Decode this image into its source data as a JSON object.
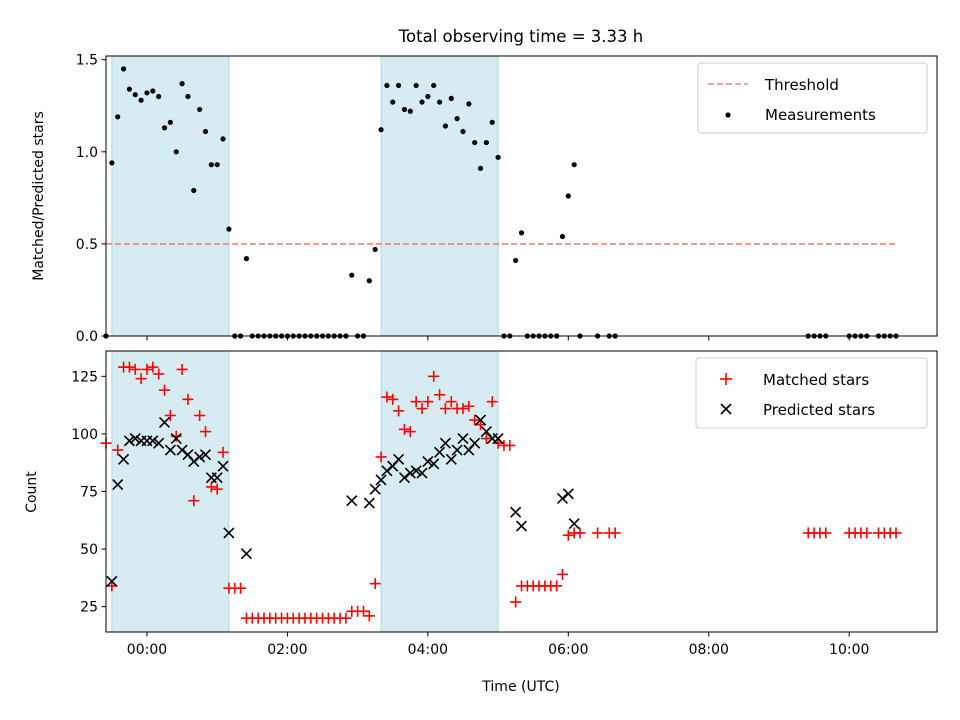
{
  "chart_data": [
    {
      "type": "scatter",
      "title": "Total observing time = 3.33 h",
      "xlabel": "",
      "ylabel": "Matched/Predicted stars",
      "x_axis": "time_utc",
      "xlim": [
        "-00:35",
        "11:15"
      ],
      "ylim": [
        0,
        1.52
      ],
      "yticks": [
        "0.0",
        "0.5",
        "1.0",
        "1.5"
      ],
      "grid": false,
      "legend_position": "top-right",
      "legend": [
        "Threshold",
        "Measurements"
      ],
      "shaded_intervals": [
        {
          "start": "-00:30",
          "end": "01:10"
        },
        {
          "start": "03:20",
          "end": "05:00"
        }
      ],
      "threshold": {
        "name": "Threshold",
        "value": 0.5,
        "x_start": "-00:35",
        "x_end": "10:40",
        "color": "#f08080",
        "style": "dashed"
      },
      "series": [
        {
          "name": "Measurements",
          "marker": "dot",
          "color": "#000000",
          "points": [
            [
              "-00:35",
              0.0
            ],
            [
              "-00:30",
              0.94
            ],
            [
              "-00:25",
              1.19
            ],
            [
              "-00:20",
              1.45
            ],
            [
              "-00:15",
              1.34
            ],
            [
              "-00:10",
              1.31
            ],
            [
              "-00:05",
              1.28
            ],
            [
              "00:00",
              1.32
            ],
            [
              "00:05",
              1.33
            ],
            [
              "00:10",
              1.3
            ],
            [
              "00:15",
              1.13
            ],
            [
              "00:20",
              1.16
            ],
            [
              "00:25",
              1.0
            ],
            [
              "00:30",
              1.37
            ],
            [
              "00:35",
              1.3
            ],
            [
              "00:40",
              0.79
            ],
            [
              "00:45",
              1.23
            ],
            [
              "00:50",
              1.11
            ],
            [
              "00:55",
              0.93
            ],
            [
              "01:00",
              0.93
            ],
            [
              "01:05",
              1.07
            ],
            [
              "01:10",
              0.58
            ],
            [
              "01:15",
              0.0
            ],
            [
              "01:20",
              0.0
            ],
            [
              "01:25",
              0.42
            ],
            [
              "01:30",
              0.0
            ],
            [
              "01:35",
              0.0
            ],
            [
              "01:40",
              0.0
            ],
            [
              "01:45",
              0.0
            ],
            [
              "01:50",
              0.0
            ],
            [
              "01:55",
              0.0
            ],
            [
              "02:00",
              0.0
            ],
            [
              "02:05",
              0.0
            ],
            [
              "02:10",
              0.0
            ],
            [
              "02:15",
              0.0
            ],
            [
              "02:20",
              0.0
            ],
            [
              "02:25",
              0.0
            ],
            [
              "02:30",
              0.0
            ],
            [
              "02:35",
              0.0
            ],
            [
              "02:40",
              0.0
            ],
            [
              "02:45",
              0.0
            ],
            [
              "02:50",
              0.0
            ],
            [
              "02:55",
              0.33
            ],
            [
              "03:00",
              0.0
            ],
            [
              "03:05",
              0.0
            ],
            [
              "03:10",
              0.3
            ],
            [
              "03:15",
              0.47
            ],
            [
              "03:20",
              1.12
            ],
            [
              "03:25",
              1.36
            ],
            [
              "03:30",
              1.27
            ],
            [
              "03:35",
              1.36
            ],
            [
              "03:40",
              1.23
            ],
            [
              "03:45",
              1.22
            ],
            [
              "03:50",
              1.36
            ],
            [
              "03:55",
              1.27
            ],
            [
              "04:00",
              1.3
            ],
            [
              "04:05",
              1.36
            ],
            [
              "04:10",
              1.27
            ],
            [
              "04:15",
              1.14
            ],
            [
              "04:20",
              1.29
            ],
            [
              "04:25",
              1.18
            ],
            [
              "04:30",
              1.11
            ],
            [
              "04:35",
              1.26
            ],
            [
              "04:40",
              1.05
            ],
            [
              "04:45",
              0.91
            ],
            [
              "04:50",
              1.05
            ],
            [
              "04:55",
              1.16
            ],
            [
              "05:00",
              0.97
            ],
            [
              "05:05",
              0.0
            ],
            [
              "05:10",
              0.0
            ],
            [
              "05:15",
              0.41
            ],
            [
              "05:20",
              0.56
            ],
            [
              "05:25",
              0.0
            ],
            [
              "05:30",
              0.0
            ],
            [
              "05:35",
              0.0
            ],
            [
              "05:40",
              0.0
            ],
            [
              "05:45",
              0.0
            ],
            [
              "05:50",
              0.0
            ],
            [
              "05:55",
              0.54
            ],
            [
              "06:00",
              0.76
            ],
            [
              "06:05",
              0.93
            ],
            [
              "06:10",
              0.0
            ],
            [
              "06:25",
              0.0
            ],
            [
              "06:35",
              0.0
            ],
            [
              "06:40",
              0.0
            ],
            [
              "09:25",
              0.0
            ],
            [
              "09:30",
              0.0
            ],
            [
              "09:35",
              0.0
            ],
            [
              "09:40",
              0.0
            ],
            [
              "10:00",
              0.0
            ],
            [
              "10:05",
              0.0
            ],
            [
              "10:10",
              0.0
            ],
            [
              "10:15",
              0.0
            ],
            [
              "10:25",
              0.0
            ],
            [
              "10:30",
              0.0
            ],
            [
              "10:35",
              0.0
            ],
            [
              "10:40",
              0.0
            ]
          ]
        }
      ]
    },
    {
      "type": "scatter",
      "title": "",
      "xlabel": "Time (UTC)",
      "ylabel": "Count",
      "x_axis": "time_utc",
      "xlim": [
        "-00:35",
        "11:15"
      ],
      "xticks": [
        "00:00",
        "02:00",
        "04:00",
        "06:00",
        "08:00",
        "10:00"
      ],
      "ylim": [
        14,
        136
      ],
      "yticks": [
        "25",
        "50",
        "75",
        "100",
        "125"
      ],
      "grid": false,
      "legend_position": "top-right",
      "legend": [
        "Matched stars",
        "Predicted stars"
      ],
      "shaded_intervals": [
        {
          "start": "-00:30",
          "end": "01:10"
        },
        {
          "start": "03:20",
          "end": "05:00"
        }
      ],
      "series": [
        {
          "name": "Matched stars",
          "marker": "plus",
          "color": "#ff0000",
          "points": [
            [
              "-00:35",
              96
            ],
            [
              "-00:30",
              34
            ],
            [
              "-00:25",
              93
            ],
            [
              "-00:20",
              129
            ],
            [
              "-00:15",
              129
            ],
            [
              "-00:10",
              128
            ],
            [
              "-00:05",
              124
            ],
            [
              "00:00",
              128
            ],
            [
              "00:05",
              129
            ],
            [
              "00:10",
              126
            ],
            [
              "00:15",
              119
            ],
            [
              "00:20",
              108
            ],
            [
              "00:25",
              99
            ],
            [
              "00:30",
              128
            ],
            [
              "00:35",
              115
            ],
            [
              "00:40",
              71
            ],
            [
              "00:45",
              108
            ],
            [
              "00:50",
              101
            ],
            [
              "00:55",
              77
            ],
            [
              "01:00",
              76
            ],
            [
              "01:05",
              92
            ],
            [
              "01:10",
              33
            ],
            [
              "01:15",
              33
            ],
            [
              "01:20",
              33
            ],
            [
              "01:25",
              20
            ],
            [
              "01:30",
              20
            ],
            [
              "01:35",
              20
            ],
            [
              "01:40",
              20
            ],
            [
              "01:45",
              20
            ],
            [
              "01:50",
              20
            ],
            [
              "01:55",
              20
            ],
            [
              "02:00",
              20
            ],
            [
              "02:05",
              20
            ],
            [
              "02:10",
              20
            ],
            [
              "02:15",
              20
            ],
            [
              "02:20",
              20
            ],
            [
              "02:25",
              20
            ],
            [
              "02:30",
              20
            ],
            [
              "02:35",
              20
            ],
            [
              "02:40",
              20
            ],
            [
              "02:45",
              20
            ],
            [
              "02:50",
              20
            ],
            [
              "02:55",
              23
            ],
            [
              "03:00",
              23
            ],
            [
              "03:05",
              23
            ],
            [
              "03:10",
              21
            ],
            [
              "03:15",
              35
            ],
            [
              "03:20",
              90
            ],
            [
              "03:25",
              116
            ],
            [
              "03:30",
              115
            ],
            [
              "03:35",
              110
            ],
            [
              "03:40",
              102
            ],
            [
              "03:45",
              101
            ],
            [
              "03:50",
              114
            ],
            [
              "03:55",
              111
            ],
            [
              "04:00",
              114
            ],
            [
              "04:05",
              125
            ],
            [
              "04:10",
              117
            ],
            [
              "04:15",
              111
            ],
            [
              "04:20",
              114
            ],
            [
              "04:25",
              111
            ],
            [
              "04:30",
              111
            ],
            [
              "04:35",
              112
            ],
            [
              "04:40",
              106
            ],
            [
              "04:45",
              104
            ],
            [
              "04:50",
              98
            ],
            [
              "04:55",
              114
            ],
            [
              "05:00",
              96
            ],
            [
              "05:05",
              95
            ],
            [
              "05:10",
              95
            ],
            [
              "05:15",
              27
            ],
            [
              "05:20",
              34
            ],
            [
              "05:25",
              34
            ],
            [
              "05:30",
              34
            ],
            [
              "05:35",
              34
            ],
            [
              "05:40",
              34
            ],
            [
              "05:45",
              34
            ],
            [
              "05:50",
              34
            ],
            [
              "05:55",
              39
            ],
            [
              "06:00",
              56
            ],
            [
              "06:05",
              57
            ],
            [
              "06:10",
              57
            ],
            [
              "06:25",
              57
            ],
            [
              "06:35",
              57
            ],
            [
              "06:40",
              57
            ],
            [
              "09:25",
              57
            ],
            [
              "09:30",
              57
            ],
            [
              "09:35",
              57
            ],
            [
              "09:40",
              57
            ],
            [
              "10:00",
              57
            ],
            [
              "10:05",
              57
            ],
            [
              "10:10",
              57
            ],
            [
              "10:15",
              57
            ],
            [
              "10:25",
              57
            ],
            [
              "10:30",
              57
            ],
            [
              "10:35",
              57
            ],
            [
              "10:40",
              57
            ]
          ]
        },
        {
          "name": "Predicted stars",
          "marker": "x",
          "color": "#000000",
          "points": [
            [
              "-00:30",
              36
            ],
            [
              "-00:25",
              78
            ],
            [
              "-00:20",
              89
            ],
            [
              "-00:15",
              97
            ],
            [
              "-00:10",
              98
            ],
            [
              "-00:05",
              97
            ],
            [
              "00:00",
              97
            ],
            [
              "00:05",
              97
            ],
            [
              "00:10",
              96
            ],
            [
              "00:15",
              105
            ],
            [
              "00:20",
              93
            ],
            [
              "00:25",
              98
            ],
            [
              "00:30",
              93
            ],
            [
              "00:35",
              91
            ],
            [
              "00:40",
              88
            ],
            [
              "00:45",
              90
            ],
            [
              "00:50",
              91
            ],
            [
              "00:55",
              81
            ],
            [
              "01:00",
              81
            ],
            [
              "01:05",
              86
            ],
            [
              "01:10",
              57
            ],
            [
              "01:25",
              48
            ],
            [
              "02:55",
              71
            ],
            [
              "03:10",
              70
            ],
            [
              "03:15",
              76
            ],
            [
              "03:20",
              80
            ],
            [
              "03:25",
              84
            ],
            [
              "03:30",
              86
            ],
            [
              "03:35",
              89
            ],
            [
              "03:40",
              81
            ],
            [
              "03:45",
              83
            ],
            [
              "03:50",
              84
            ],
            [
              "03:55",
              83
            ],
            [
              "04:00",
              88
            ],
            [
              "04:05",
              87
            ],
            [
              "04:10",
              92
            ],
            [
              "04:15",
              96
            ],
            [
              "04:20",
              89
            ],
            [
              "04:25",
              93
            ],
            [
              "04:30",
              98
            ],
            [
              "04:35",
              93
            ],
            [
              "04:40",
              96
            ],
            [
              "04:45",
              106
            ],
            [
              "04:50",
              101
            ],
            [
              "04:55",
              98
            ],
            [
              "05:00",
              98
            ],
            [
              "05:15",
              66
            ],
            [
              "05:20",
              60
            ],
            [
              "05:55",
              72
            ],
            [
              "06:00",
              74
            ],
            [
              "06:05",
              61
            ]
          ]
        }
      ]
    }
  ]
}
